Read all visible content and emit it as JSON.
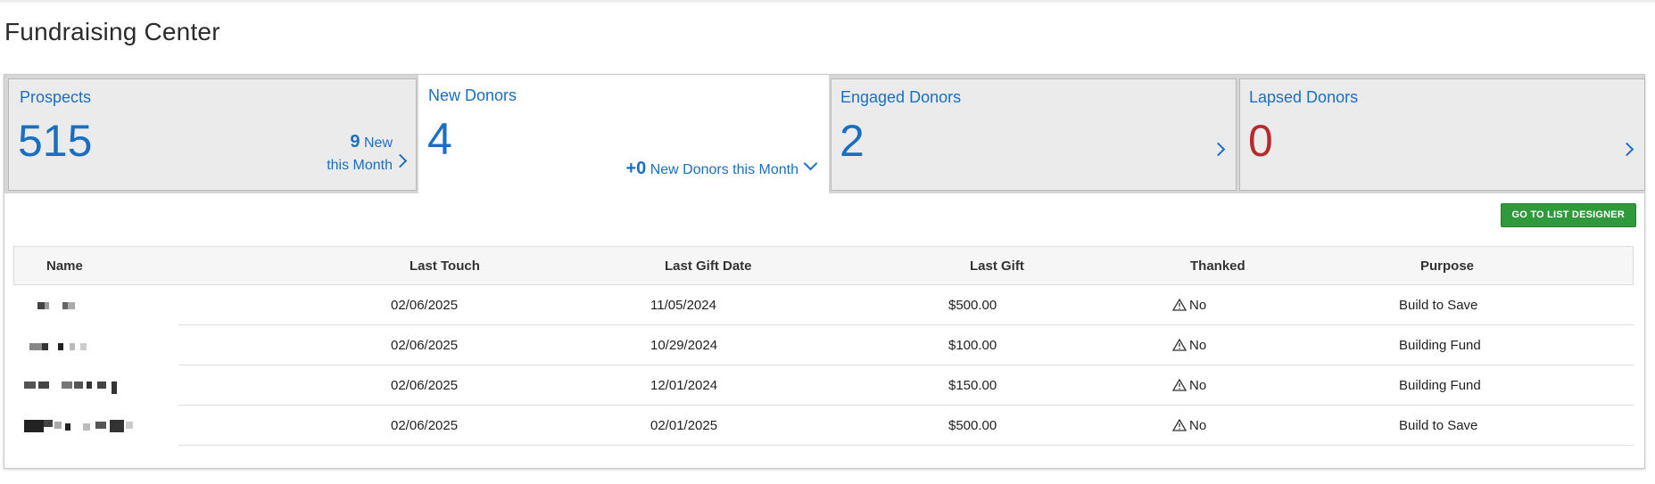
{
  "page": {
    "title": "Fundraising Center"
  },
  "tiles": {
    "prospects": {
      "title": "Prospects",
      "count": "515",
      "new_count": "9",
      "new_label": "New",
      "new_label2": "this Month"
    },
    "new_donors": {
      "title": "New Donors",
      "count": "4",
      "delta": "+0",
      "delta_label": "New Donors this Month"
    },
    "engaged": {
      "title": "Engaged Donors",
      "count": "2"
    },
    "lapsed": {
      "title": "Lapsed Donors",
      "count": "0"
    }
  },
  "actions": {
    "list_designer": "GO TO LIST DESIGNER"
  },
  "table": {
    "columns": [
      "Name",
      "Last Touch",
      "Last Gift Date",
      "Last Gift",
      "Thanked",
      "Purpose"
    ],
    "rows": [
      {
        "last_touch": "02/06/2025",
        "last_gift_date": "11/05/2024",
        "last_gift": "$500.00",
        "thanked": "No",
        "purpose": "Build to Save"
      },
      {
        "last_touch": "02/06/2025",
        "last_gift_date": "10/29/2024",
        "last_gift": "$100.00",
        "thanked": "No",
        "purpose": "Building Fund"
      },
      {
        "last_touch": "02/06/2025",
        "last_gift_date": "12/01/2024",
        "last_gift": "$150.00",
        "thanked": "No",
        "purpose": "Building Fund"
      },
      {
        "last_touch": "02/06/2025",
        "last_gift_date": "02/01/2025",
        "last_gift": "$500.00",
        "thanked": "No",
        "purpose": "Build to Save"
      }
    ]
  },
  "colors": {
    "link_blue": "#1a6fc2",
    "alert_red": "#b32d2e",
    "button_green": "#2e9a3b"
  },
  "icons": {
    "thanked_status": "warning-triangle-icon",
    "tile_nav": "chevron-right-icon",
    "tile_expand": "chevron-down-icon"
  }
}
